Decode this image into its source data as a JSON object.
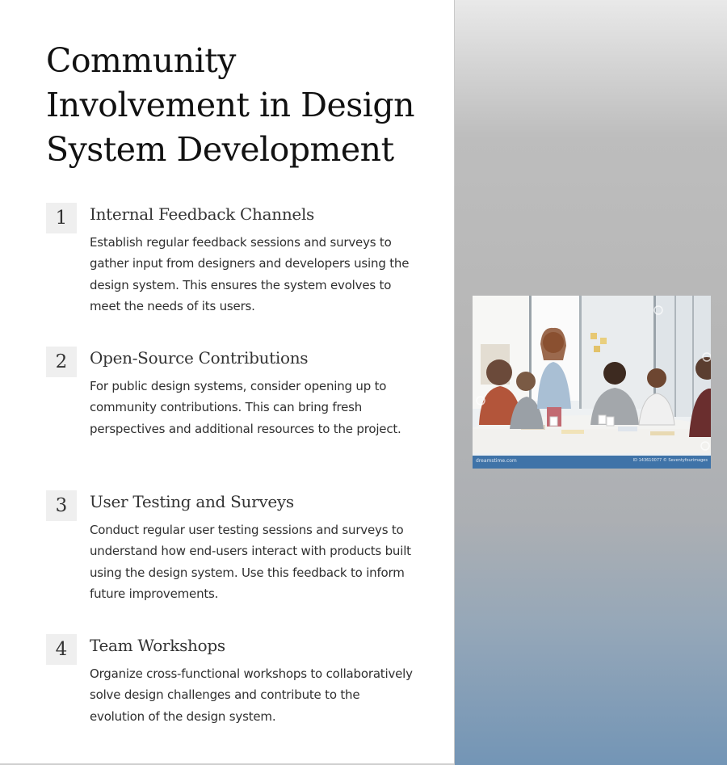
{
  "page": {
    "title": "Community Involvement in Design System Development"
  },
  "items": [
    {
      "number": "1",
      "title": "Internal Feedback Channels",
      "body": "Establish regular feedback sessions and surveys to gather input from designers and developers using the design system. This ensures the system evolves to meet the needs of its users."
    },
    {
      "number": "2",
      "title": "Open-Source Contributions",
      "body": "For public design systems, consider opening up to community contributions. This can bring fresh perspectives and additional resources to the project."
    },
    {
      "number": "3",
      "title": "User Testing and Surveys",
      "body": "Conduct regular user testing sessions and surveys to understand how end-users interact with products built using the design system. Use this feedback to inform future improvements."
    },
    {
      "number": "4",
      "title": "Team Workshops",
      "body": "Organize cross-functional workshops to collaboratively solve design challenges and contribute to the evolution of the design system."
    }
  ],
  "photo": {
    "watermark_left": "dreamstime.com",
    "watermark_right": "ID 143610077 © Seventyfourimages"
  },
  "colors": {
    "number_badge": "#efefef",
    "photo_footer": "#3f73a8",
    "panel_bottom": "#7395b6"
  }
}
